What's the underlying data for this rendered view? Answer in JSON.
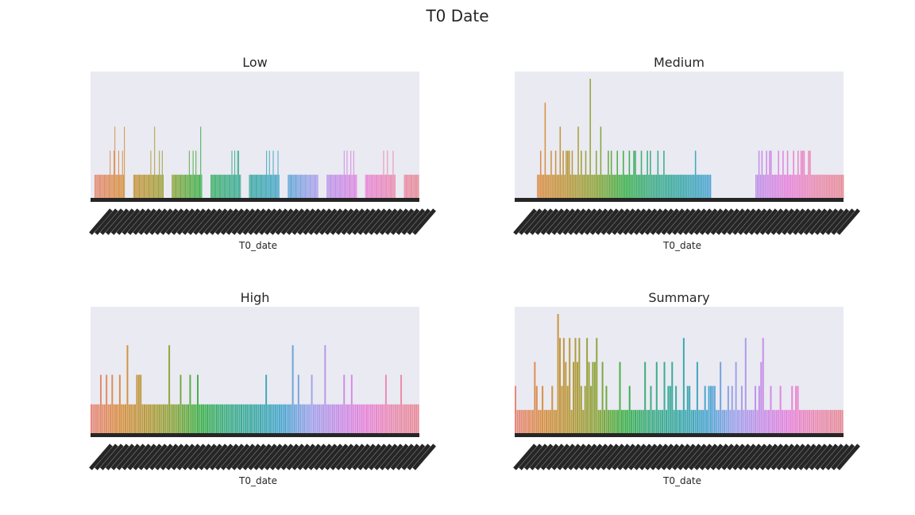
{
  "figure": {
    "title": "T0 Date"
  },
  "chart_data": [
    {
      "type": "bar",
      "title": "Low",
      "xlabel": "T0_date",
      "ylabel": "",
      "ylim": [
        0,
        5.3
      ],
      "grid": false,
      "series": [
        {
          "values": [
            1,
            1,
            1,
            1,
            1,
            1,
            1,
            1,
            1,
            1,
            1,
            1,
            1,
            1,
            1,
            1,
            2,
            1,
            1,
            1,
            2,
            3,
            1,
            1,
            1,
            2,
            1,
            1,
            1,
            2,
            1,
            3,
            1,
            1,
            1,
            1,
            1,
            1,
            1,
            1,
            1,
            1,
            1,
            1,
            1,
            1,
            1,
            1,
            1,
            1,
            2,
            1,
            1,
            1,
            3,
            1,
            1,
            1,
            1,
            2,
            1,
            1,
            2,
            1,
            1,
            1,
            1,
            1,
            1,
            1,
            1,
            1,
            1,
            1,
            1,
            1,
            1,
            1,
            1,
            1,
            1,
            1,
            2,
            1,
            1,
            1,
            2,
            1,
            1,
            2,
            1,
            1,
            1,
            1,
            3,
            1,
            1,
            1,
            1,
            1,
            1,
            1,
            1,
            1,
            1,
            1,
            1,
            1,
            1,
            1,
            1,
            1,
            1,
            1,
            1,
            1,
            1,
            1,
            2,
            1,
            1,
            2,
            1,
            1,
            2,
            2,
            1,
            1,
            1,
            1,
            1,
            1,
            1,
            1,
            1,
            1,
            1,
            1,
            1,
            1,
            1,
            1,
            1,
            1,
            1,
            1,
            2,
            1,
            1,
            2,
            1,
            1,
            1,
            2,
            1,
            1,
            1,
            1,
            2,
            1,
            1,
            1,
            1,
            1,
            1,
            1,
            1,
            1,
            1,
            1,
            1,
            1,
            1,
            1,
            1,
            1,
            1,
            1,
            1,
            1,
            1,
            1,
            1,
            1,
            1,
            1,
            1,
            1,
            1,
            1,
            1,
            1,
            1,
            1,
            1,
            1,
            1,
            1,
            1,
            1,
            1,
            1,
            1,
            1,
            1,
            1,
            1,
            1,
            1,
            1,
            2,
            1,
            1,
            2,
            1,
            1,
            1,
            2,
            1,
            1,
            2,
            1,
            1,
            1,
            1,
            1,
            1,
            1,
            1,
            1,
            1,
            1,
            1,
            1,
            1,
            1,
            1,
            1,
            1,
            1,
            1,
            1,
            1,
            2,
            1,
            1,
            1,
            2,
            1,
            1,
            1,
            1,
            1,
            2,
            1,
            1,
            1,
            1,
            1,
            1,
            1,
            1,
            1,
            1,
            1,
            1,
            1,
            1,
            1,
            1,
            1,
            1
          ]
        }
      ]
    },
    {
      "type": "bar",
      "title": "Medium",
      "xlabel": "T0_date",
      "ylabel": "",
      "ylim": [
        0,
        5.3
      ],
      "grid": false,
      "series": [
        {
          "values": [
            1,
            1,
            2,
            1,
            1,
            4,
            1,
            1,
            1,
            2,
            1,
            1,
            2,
            1,
            1,
            3,
            1,
            2,
            1,
            2,
            2,
            2,
            1,
            2,
            1,
            1,
            1,
            3,
            1,
            2,
            1,
            1,
            2,
            1,
            1,
            5,
            1,
            1,
            1,
            2,
            1,
            1,
            3,
            1,
            1,
            1,
            1,
            2,
            1,
            2,
            1,
            1,
            1,
            2,
            1,
            1,
            1,
            2,
            1,
            1,
            1,
            2,
            1,
            1,
            2,
            2,
            1,
            1,
            1,
            2,
            1,
            1,
            1,
            2,
            1,
            2,
            1,
            1,
            1,
            1,
            2,
            1,
            1,
            1,
            2,
            1,
            1,
            1,
            1,
            1,
            1,
            1,
            1,
            1,
            1,
            1,
            1,
            1,
            1,
            1,
            1,
            1,
            1,
            1,
            1,
            2,
            1,
            1,
            1,
            1,
            1,
            1,
            1,
            1,
            1,
            1,
            1,
            1,
            2,
            1,
            2,
            1,
            1,
            2,
            1,
            2,
            2,
            1,
            1,
            1,
            1,
            2,
            1,
            1,
            2,
            1,
            1,
            2,
            1,
            1,
            1,
            2,
            1,
            1,
            2,
            1,
            2,
            2,
            2,
            1,
            1,
            2,
            2,
            1,
            1,
            1,
            1,
            1,
            1,
            1,
            1,
            1,
            1,
            1,
            1,
            1,
            1,
            1,
            1,
            1,
            1,
            1,
            1,
            1,
            1
          ]
        }
      ]
    },
    {
      "type": "bar",
      "title": "High",
      "xlabel": "T0_date",
      "ylabel": "",
      "ylim": [
        0,
        4.3
      ],
      "grid": false,
      "series": [
        {
          "values": [
            1,
            1,
            1,
            1,
            1,
            2,
            1,
            1,
            2,
            1,
            1,
            2,
            1,
            1,
            1,
            2,
            1,
            1,
            1,
            3,
            1,
            1,
            1,
            1,
            2,
            2,
            2,
            1,
            1,
            1,
            1,
            1,
            1,
            1,
            1,
            1,
            1,
            1,
            1,
            1,
            1,
            3,
            1,
            1,
            1,
            1,
            1,
            2,
            1,
            1,
            1,
            1,
            2,
            1,
            1,
            1,
            2,
            1,
            1,
            1,
            1,
            1,
            1,
            1,
            1,
            1,
            1,
            1,
            1,
            1,
            1,
            1,
            1,
            1,
            1,
            1,
            1,
            1,
            1,
            1,
            1,
            1,
            1,
            1,
            1,
            1,
            1,
            1,
            1,
            1,
            1,
            1,
            2,
            1,
            1,
            1,
            1,
            1,
            1,
            1,
            1,
            1,
            1,
            1,
            1,
            1,
            3,
            1,
            1,
            2,
            1,
            1,
            1,
            1,
            1,
            1,
            2,
            1,
            1,
            1,
            1,
            1,
            1,
            3,
            1,
            1,
            1,
            1,
            1,
            1,
            1,
            1,
            1,
            2,
            1,
            1,
            1,
            2,
            1,
            1,
            1,
            1,
            1,
            1,
            1,
            1,
            1,
            1,
            1,
            1,
            1,
            1,
            1,
            1,
            1,
            2,
            1,
            1,
            1,
            1,
            1,
            1,
            1,
            2,
            1,
            1,
            1,
            1,
            1,
            1,
            1,
            1,
            1
          ]
        }
      ]
    },
    {
      "type": "bar",
      "title": "Summary",
      "xlabel": "T0_date",
      "ylabel": "",
      "ylim": [
        0,
        5.3
      ],
      "grid": false,
      "series": [
        {
          "values": [
            2,
            1,
            1,
            1,
            1,
            1,
            1,
            1,
            1,
            1,
            3,
            2,
            1,
            1,
            2,
            1,
            1,
            1,
            1,
            2,
            1,
            1,
            5,
            4,
            2,
            4,
            3,
            2,
            4,
            1,
            3,
            4,
            3,
            4,
            2,
            1,
            2,
            4,
            3,
            2,
            3,
            3,
            4,
            1,
            1,
            3,
            1,
            2,
            1,
            1,
            1,
            1,
            1,
            1,
            3,
            1,
            1,
            1,
            1,
            2,
            1,
            1,
            1,
            1,
            1,
            1,
            1,
            3,
            1,
            1,
            2,
            1,
            1,
            3,
            1,
            1,
            1,
            3,
            1,
            2,
            2,
            3,
            1,
            2,
            1,
            1,
            1,
            4,
            1,
            2,
            2,
            1,
            1,
            1,
            3,
            1,
            1,
            1,
            2,
            1,
            2,
            2,
            2,
            2,
            1,
            1,
            3,
            1,
            1,
            1,
            2,
            1,
            2,
            1,
            3,
            1,
            1,
            2,
            1,
            4,
            1,
            1,
            1,
            1,
            2,
            1,
            2,
            3,
            4,
            1,
            1,
            1,
            2,
            1,
            1,
            1,
            1,
            2,
            1,
            1,
            1,
            1,
            1,
            2,
            1,
            2,
            2,
            1,
            1,
            1,
            1,
            1,
            1,
            1,
            1,
            1,
            1,
            1,
            1,
            1,
            1,
            1,
            1,
            1,
            1,
            1,
            1,
            1,
            1,
            1
          ]
        }
      ]
    }
  ]
}
